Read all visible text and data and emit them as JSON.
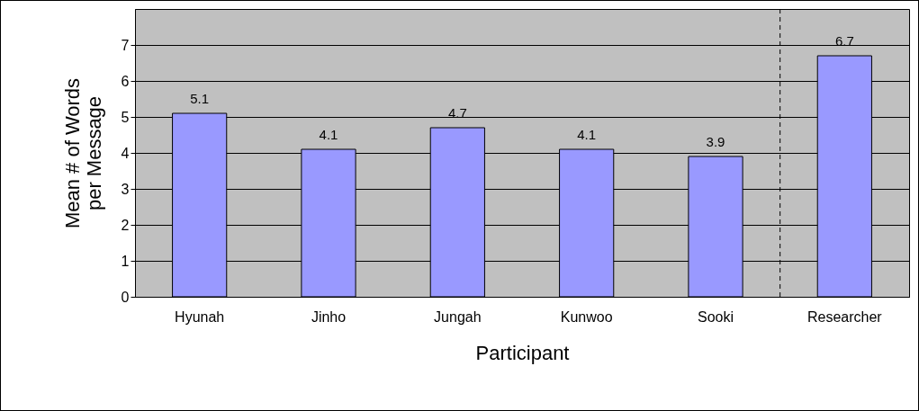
{
  "chart_data": {
    "type": "bar",
    "categories": [
      "Hyunah",
      "Jinho",
      "Jungah",
      "Kunwoo",
      "Sooki",
      "Researcher"
    ],
    "values": [
      5.1,
      4.1,
      4.7,
      4.1,
      3.9,
      6.7
    ],
    "color": "#9999ff",
    "xlabel": "Participant",
    "ylabel": "Mean # of Words\nper Message",
    "ylim": [
      0,
      8
    ],
    "yticks": [
      0,
      1,
      2,
      3,
      4,
      5,
      6,
      7
    ],
    "grid": "y",
    "data_labels": true,
    "ref_lines": [
      {
        "axis": "x",
        "value": "Researcher",
        "line_style": "dashed",
        "color": "#000000"
      }
    ]
  }
}
